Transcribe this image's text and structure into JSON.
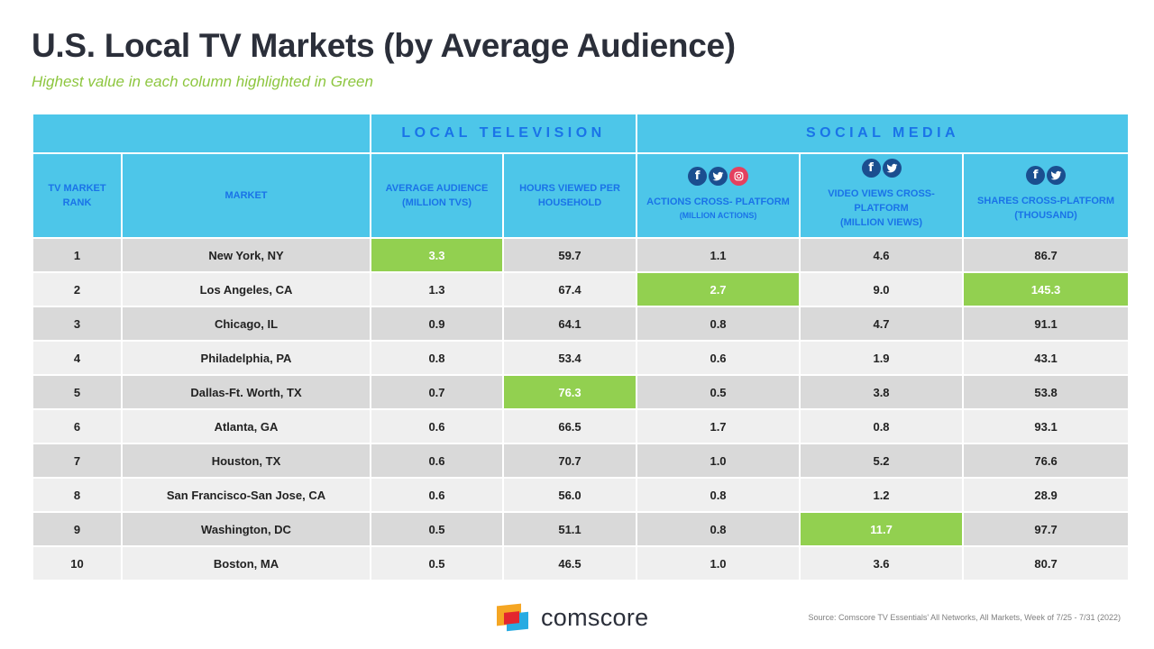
{
  "title": "U.S. Local TV Markets (by Average Audience)",
  "subtitle": "Highest value in each column highlighted in Green",
  "groups": {
    "local_tv": "LOCAL TELEVISION",
    "social_media": "SOCIAL MEDIA"
  },
  "headers": {
    "rank": "TV MARKET RANK",
    "market": "MARKET",
    "avg_audience": "AVERAGE AUDIENCE (MILLION TVS)",
    "hours_viewed": "HOURS VIEWED PER HOUSEHOLD",
    "actions": "ACTIONS CROSS- PLATFORM",
    "actions_unit": "(MILLION ACTIONS)",
    "video_views": "VIDEO VIEWS CROSS-PLATFORM",
    "video_views_unit": "(MILLION VIEWS)",
    "shares": "SHARES CROSS-PLATFORM",
    "shares_unit": "(THOUSAND)"
  },
  "icon_names": [
    "facebook-icon",
    "twitter-icon",
    "instagram-icon"
  ],
  "highlight_color": "#92d050",
  "rows": [
    {
      "rank": "1",
      "market": "New York, NY",
      "avg": "3.3",
      "hours": "59.7",
      "actions": "1.1",
      "views": "4.6",
      "shares": "86.7"
    },
    {
      "rank": "2",
      "market": "Los Angeles, CA",
      "avg": "1.3",
      "hours": "67.4",
      "actions": "2.7",
      "views": "9.0",
      "shares": "145.3"
    },
    {
      "rank": "3",
      "market": "Chicago, IL",
      "avg": "0.9",
      "hours": "64.1",
      "actions": "0.8",
      "views": "4.7",
      "shares": "91.1"
    },
    {
      "rank": "4",
      "market": "Philadelphia, PA",
      "avg": "0.8",
      "hours": "53.4",
      "actions": "0.6",
      "views": "1.9",
      "shares": "43.1"
    },
    {
      "rank": "5",
      "market": "Dallas-Ft. Worth, TX",
      "avg": "0.7",
      "hours": "76.3",
      "actions": "0.5",
      "views": "3.8",
      "shares": "53.8"
    },
    {
      "rank": "6",
      "market": "Atlanta, GA",
      "avg": "0.6",
      "hours": "66.5",
      "actions": "1.7",
      "views": "0.8",
      "shares": "93.1"
    },
    {
      "rank": "7",
      "market": "Houston, TX",
      "avg": "0.6",
      "hours": "70.7",
      "actions": "1.0",
      "views": "5.2",
      "shares": "76.6"
    },
    {
      "rank": "8",
      "market": "San Francisco-San Jose, CA",
      "avg": "0.6",
      "hours": "56.0",
      "actions": "0.8",
      "views": "1.2",
      "shares": "28.9"
    },
    {
      "rank": "9",
      "market": "Washington, DC",
      "avg": "0.5",
      "hours": "51.1",
      "actions": "0.8",
      "views": "11.7",
      "shares": "97.7"
    },
    {
      "rank": "10",
      "market": "Boston, MA",
      "avg": "0.5",
      "hours": "46.5",
      "actions": "1.0",
      "views": "3.6",
      "shares": "80.7"
    }
  ],
  "logo_text": "comscore",
  "source": "Source: Comscore TV Essentials' All Networks, All Markets, Week of 7/25 - 7/31 (2022)"
}
